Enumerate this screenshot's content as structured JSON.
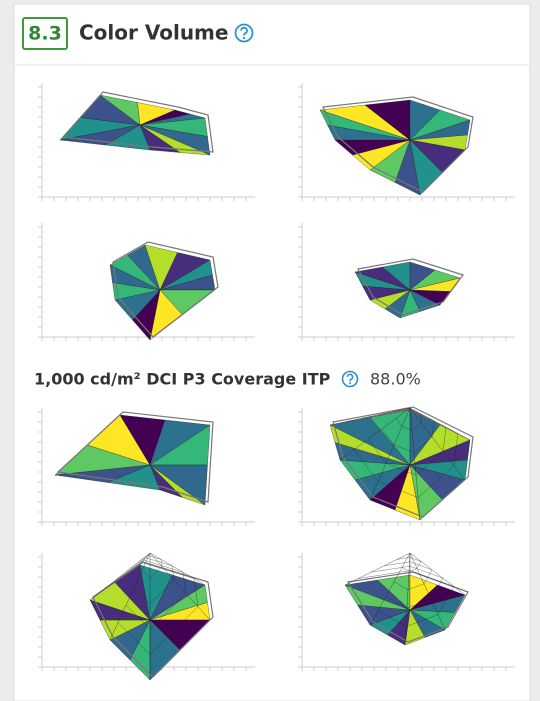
{
  "header": {
    "score": "8.3",
    "title": "Color Volume"
  },
  "metric": {
    "label": "1,000 cd/m² DCI P3 Coverage ITP",
    "value": "88.0%"
  }
}
